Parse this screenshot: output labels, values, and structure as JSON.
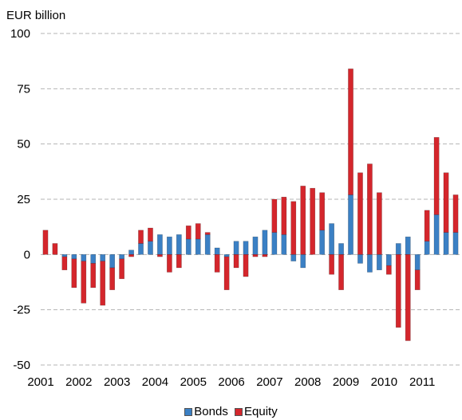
{
  "chart_data": {
    "type": "bar",
    "stacked": true,
    "unit_label": "EUR billion",
    "ylim": [
      -50,
      100
    ],
    "y_ticks": [
      "100",
      "75",
      "50",
      "25",
      "0",
      "-25",
      "-50"
    ],
    "x_ticks": [
      "2001",
      "2002",
      "2003",
      "2004",
      "2005",
      "2006",
      "2007",
      "2008",
      "2009",
      "2010",
      "2011"
    ],
    "grid": true,
    "legend_position": "bottom-center",
    "periods_per_year": 4,
    "categories": [
      "2001 Q1",
      "2001 Q2",
      "2001 Q3",
      "2001 Q4",
      "2002 Q1",
      "2002 Q2",
      "2002 Q3",
      "2002 Q4",
      "2003 Q1",
      "2003 Q2",
      "2003 Q3",
      "2003 Q4",
      "2004 Q1",
      "2004 Q2",
      "2004 Q3",
      "2004 Q4",
      "2005 Q1",
      "2005 Q2",
      "2005 Q3",
      "2005 Q4",
      "2006 Q1",
      "2006 Q2",
      "2006 Q3",
      "2006 Q4",
      "2007 Q1",
      "2007 Q2",
      "2007 Q3",
      "2007 Q4",
      "2008 Q1",
      "2008 Q2",
      "2008 Q3",
      "2008 Q4",
      "2009 Q1",
      "2009 Q2",
      "2009 Q3",
      "2009 Q4",
      "2010 Q1",
      "2010 Q2",
      "2010 Q3",
      "2010 Q4",
      "2011 Q1",
      "2011 Q2",
      "2011 Q3",
      "2011 Q4"
    ],
    "series": [
      {
        "name": "Bonds",
        "color": "#3b80c4",
        "values": [
          0,
          0,
          -1,
          -2,
          -3,
          -4,
          -3,
          -6,
          -2,
          2,
          5,
          6,
          9,
          8,
          9,
          7,
          7,
          9,
          3,
          -1,
          6,
          6,
          8,
          11,
          10,
          9,
          -3,
          -6,
          0,
          11,
          14,
          5,
          27,
          -4,
          -8,
          -7,
          -5,
          5,
          8,
          -7,
          6,
          18,
          10,
          10
        ]
      },
      {
        "name": "Equity",
        "color": "#d4262c",
        "values": [
          11,
          5,
          -6,
          -13,
          -19,
          -11,
          -20,
          -10,
          -9,
          -1,
          6,
          6,
          -1,
          -8,
          -6,
          6,
          7,
          1,
          -8,
          -15,
          -6,
          -10,
          -1,
          -1,
          15,
          17,
          24,
          31,
          30,
          17,
          -9,
          -16,
          57,
          37,
          41,
          28,
          -4,
          -33,
          -39,
          -9,
          14,
          35,
          27,
          17
        ]
      }
    ]
  }
}
